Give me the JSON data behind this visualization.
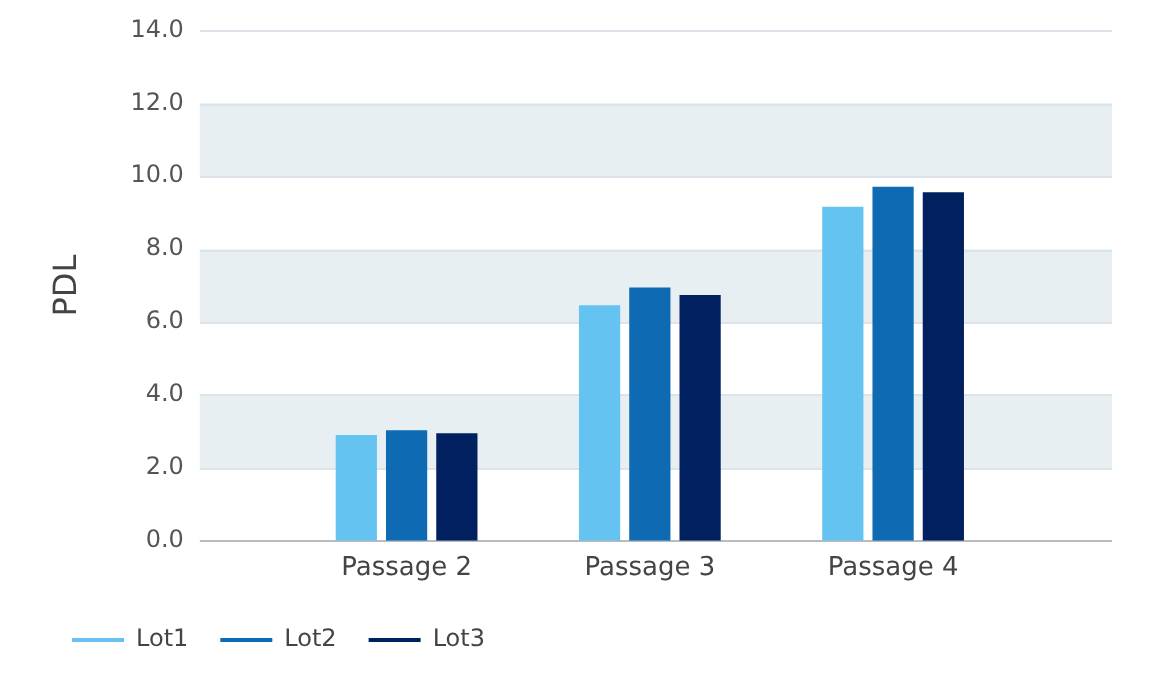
{
  "chart_data": {
    "type": "bar",
    "ylabel": "PDL",
    "categories": [
      "Passage 2",
      "Passage 3",
      "Passage 4"
    ],
    "series": [
      {
        "name": "Lot1",
        "color": "#64c3f0",
        "values": [
          2.9,
          6.46,
          9.16
        ]
      },
      {
        "name": "Lot2",
        "color": "#0f6ab4",
        "values": [
          3.03,
          6.95,
          9.71
        ]
      },
      {
        "name": "Lot3",
        "color": "#00205f",
        "values": [
          2.95,
          6.74,
          9.56
        ]
      }
    ],
    "ylim": [
      0,
      14
    ],
    "yticks": [
      {
        "value": 0,
        "label": "0.0"
      },
      {
        "value": 2,
        "label": "2.0"
      },
      {
        "value": 4,
        "label": "4.0"
      },
      {
        "value": 6,
        "label": "6.0"
      },
      {
        "value": 8,
        "label": "8.0"
      },
      {
        "value": 10,
        "label": "10.0"
      },
      {
        "value": 12,
        "label": "12.0"
      },
      {
        "value": 14,
        "label": "14.0"
      }
    ],
    "bands": [
      {
        "axis": "y",
        "from": 2,
        "to": 4,
        "color": "#e8eff3"
      },
      {
        "axis": "y",
        "from": 6,
        "to": 8,
        "color": "#e8eff3"
      },
      {
        "axis": "y",
        "from": 10,
        "to": 12,
        "color": "#e8eff3"
      }
    ],
    "grid": "y",
    "legend": "bottom left"
  }
}
